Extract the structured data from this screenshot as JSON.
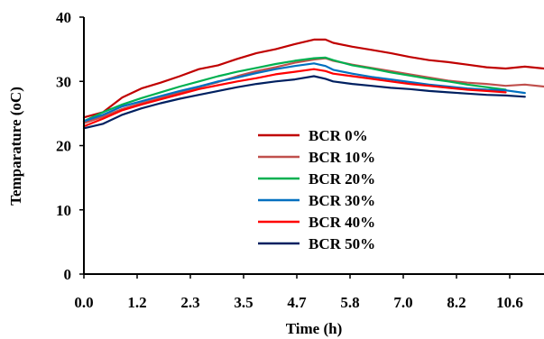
{
  "chart_data": {
    "type": "line",
    "xlabel": "Time (h)",
    "ylabel": "Temparature (oC)",
    "x_tick_labels": [
      "0.0",
      "1.2",
      "2.3",
      "3.5",
      "4.7",
      "5.8",
      "7.0",
      "8.2",
      "10.6"
    ],
    "xlim": [
      0,
      12
    ],
    "ylim": [
      0,
      40
    ],
    "y_ticks": [
      0,
      10,
      20,
      30,
      40
    ],
    "grid": false,
    "legend_position": "center",
    "series": [
      {
        "name": "BCR 0%",
        "color": "#c00000",
        "x": [
          0,
          0.5,
          1,
          1.5,
          2,
          2.5,
          3,
          3.5,
          4,
          4.5,
          5,
          5.5,
          6,
          6.3,
          6.5,
          7,
          7.5,
          8,
          8.5,
          9,
          9.5,
          10,
          10.5,
          11,
          11.5,
          12
        ],
        "y": [
          24.4,
          25.2,
          27.5,
          28.9,
          29.8,
          30.8,
          31.9,
          32.5,
          33.5,
          34.4,
          35,
          35.8,
          36.5,
          36.5,
          36,
          35.4,
          34.9,
          34.4,
          33.8,
          33.3,
          33,
          32.6,
          32.2,
          32,
          32.3,
          32
        ]
      },
      {
        "name": "BCR 10%",
        "color": "#c0504d",
        "x": [
          0,
          0.5,
          1,
          1.5,
          2,
          2.5,
          3,
          3.5,
          4,
          4.5,
          5,
          5.5,
          6,
          6.3,
          6.5,
          7,
          7.5,
          8,
          8.5,
          9,
          9.5,
          10,
          10.5,
          11,
          11.5,
          12
        ],
        "y": [
          23.5,
          24.5,
          25.7,
          26.6,
          27.4,
          28.3,
          29.1,
          29.9,
          30.8,
          31.6,
          32.2,
          32.9,
          33.4,
          33.6,
          33.2,
          32.6,
          32.1,
          31.6,
          31.1,
          30.6,
          30.1,
          29.8,
          29.6,
          29.3,
          29.5,
          29.2
        ]
      },
      {
        "name": "BCR 20%",
        "color": "#00b050",
        "x": [
          0,
          0.5,
          1,
          1.5,
          2,
          2.5,
          3,
          3.5,
          4,
          4.5,
          5,
          5.5,
          6,
          6.3,
          6.5,
          7,
          7.5,
          8,
          8.5,
          9,
          9.5,
          10,
          10.5,
          11
        ],
        "y": [
          23.8,
          25.2,
          26.4,
          27.4,
          28.3,
          29.2,
          30,
          30.8,
          31.5,
          32.1,
          32.7,
          33.2,
          33.6,
          33.7,
          33.3,
          32.5,
          32,
          31.4,
          30.9,
          30.4,
          30,
          29.5,
          29.1,
          28.7
        ]
      },
      {
        "name": "BCR 30%",
        "color": "#0070c0",
        "x": [
          0,
          0.5,
          1,
          1.5,
          2,
          2.5,
          3,
          3.5,
          4,
          4.5,
          5,
          5.5,
          6,
          6.3,
          6.5,
          7,
          7.5,
          8,
          8.5,
          9,
          9.5,
          10,
          10.5,
          11,
          11.5
        ],
        "y": [
          23.8,
          24.8,
          26.1,
          26.9,
          27.7,
          28.5,
          29.2,
          30,
          30.6,
          31.3,
          31.9,
          32.4,
          32.8,
          32.4,
          31.8,
          31.2,
          30.7,
          30.3,
          29.9,
          29.5,
          29.2,
          28.9,
          28.7,
          28.6,
          28.2
        ]
      },
      {
        "name": "BCR 40%",
        "color": "#ff0000",
        "x": [
          0,
          0.5,
          1,
          1.5,
          2,
          2.5,
          3,
          3.5,
          4,
          4.5,
          5,
          5.5,
          6,
          6.3,
          6.5,
          7,
          7.5,
          8,
          8.5,
          9,
          9.5,
          10,
          10.5,
          11
        ],
        "y": [
          23,
          24.2,
          25.5,
          26.4,
          27.2,
          28,
          28.8,
          29.4,
          30,
          30.5,
          31.1,
          31.5,
          31.9,
          31.6,
          31.2,
          30.8,
          30.4,
          30,
          29.6,
          29.3,
          29,
          28.7,
          28.5,
          28.3
        ]
      },
      {
        "name": "BCR 50%",
        "color": "#002060",
        "x": [
          0,
          0.5,
          1,
          1.5,
          2,
          2.5,
          3,
          3.5,
          4,
          4.5,
          5,
          5.5,
          6,
          6.3,
          6.5,
          7,
          7.5,
          8,
          8.5,
          9,
          9.5,
          10,
          10.5,
          11,
          11.5
        ],
        "y": [
          22.7,
          23.4,
          24.8,
          25.8,
          26.6,
          27.3,
          27.9,
          28.5,
          29.1,
          29.6,
          30,
          30.3,
          30.8,
          30.4,
          30,
          29.6,
          29.3,
          29,
          28.8,
          28.5,
          28.3,
          28.1,
          27.9,
          27.8,
          27.6
        ]
      }
    ]
  }
}
